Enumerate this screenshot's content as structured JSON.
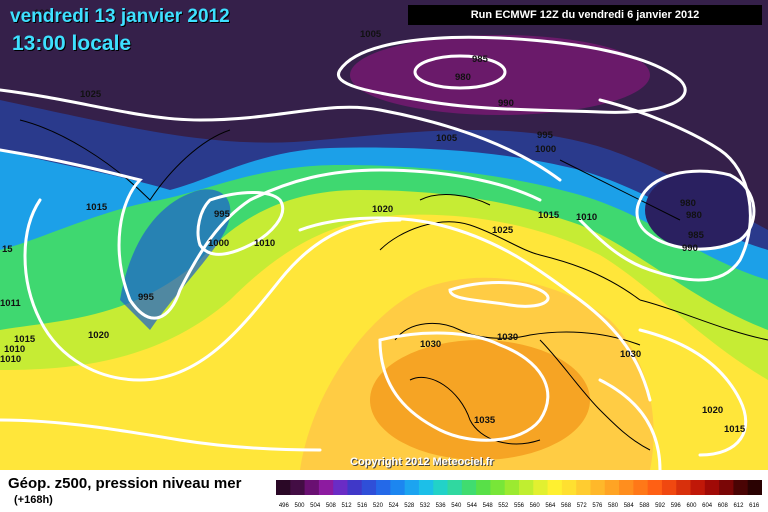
{
  "header": {
    "date": "vendredi 13 janvier 2012",
    "time": "13:00 locale",
    "run": "Run ECMWF 12Z du vendredi 6 janvier 2012"
  },
  "footer": {
    "copyright": "Copyright 2012 Meteociel.fr",
    "field": "Géop. z500, pression niveau mer",
    "lead": "(+168h)"
  },
  "colors": {
    "ocean_dark": "#35204a",
    "isobar": "#ffffff",
    "coast": "#000000"
  },
  "pressure_labels": [
    "1005",
    "985",
    "980",
    "990",
    "995",
    "1000",
    "1005",
    "1025",
    "1015",
    "995",
    "1000",
    "1010",
    "1020",
    "1015",
    "1010",
    "1025",
    "980",
    "980",
    "985",
    "990",
    "995",
    "1020",
    "1015",
    "1010",
    "1030",
    "1030",
    "1030",
    "1035",
    "1020",
    "1015",
    "102",
    "15",
    "1011",
    "1010"
  ],
  "colorbar": {
    "colors": [
      "#2a0826",
      "#430d44",
      "#6a1072",
      "#8d1ba0",
      "#6a2cc5",
      "#4038c8",
      "#2f4fd8",
      "#2469e8",
      "#1c86f0",
      "#1ca4f0",
      "#1cbfe8",
      "#22d2c8",
      "#30d8a0",
      "#40dc70",
      "#58e048",
      "#78e638",
      "#9cea30",
      "#c0ee30",
      "#e2f030",
      "#fff030",
      "#ffe030",
      "#ffcc30",
      "#ffb82a",
      "#ffa424",
      "#ff8e1e",
      "#ff7818",
      "#ff6014",
      "#f04810",
      "#d8300c",
      "#c01808",
      "#a00a06",
      "#7a0606",
      "#4a0404",
      "#2a0202"
    ],
    "labels": [
      "496",
      "500",
      "504",
      "508",
      "512",
      "516",
      "520",
      "524",
      "528",
      "532",
      "536",
      "540",
      "544",
      "548",
      "552",
      "556",
      "560",
      "564",
      "568",
      "572",
      "576",
      "580",
      "584",
      "588",
      "592",
      "596",
      "600",
      "604",
      "608",
      "612",
      "616"
    ]
  }
}
